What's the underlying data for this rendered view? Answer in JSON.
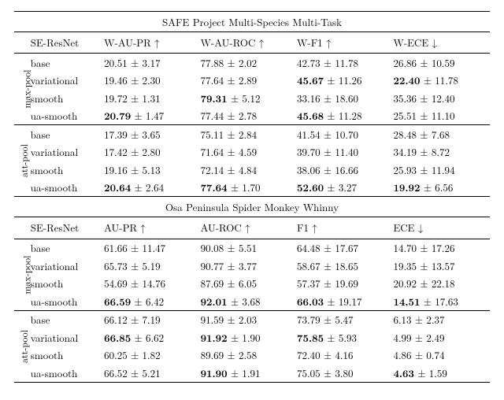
{
  "datasets": [
    {
      "title": "SAFE Project Multi-Species Multi-Task",
      "col_model": "SE-ResNet",
      "metrics": [
        "W-AU-PR ↑",
        "W-AU-ROC ↑",
        "W-F1 ↑",
        "W-ECE ↓"
      ],
      "groups": [
        {
          "name": "max-pool",
          "rows": [
            {
              "label": "base",
              "cells": [
                {
                  "v": "20.51",
                  "e": "3.17",
                  "b": false
                },
                {
                  "v": "77.88",
                  "e": "2.02",
                  "b": false
                },
                {
                  "v": "42.73",
                  "e": "11.78",
                  "b": false
                },
                {
                  "v": "26.86",
                  "e": "10.59",
                  "b": false
                }
              ]
            },
            {
              "label": "variational",
              "cells": [
                {
                  "v": "19.46",
                  "e": "2.30",
                  "b": false
                },
                {
                  "v": "77.64",
                  "e": "2.89",
                  "b": false
                },
                {
                  "v": "45.67",
                  "e": "11.26",
                  "b": true
                },
                {
                  "v": "22.40",
                  "e": "11.78",
                  "b": true
                }
              ]
            },
            {
              "label": "smooth",
              "cells": [
                {
                  "v": "19.72",
                  "e": "1.31",
                  "b": false
                },
                {
                  "v": "79.31",
                  "e": "5.12",
                  "b": true
                },
                {
                  "v": "33.16",
                  "e": "18.60",
                  "b": false
                },
                {
                  "v": "35.36",
                  "e": "12.40",
                  "b": false
                }
              ]
            },
            {
              "label": "ua-smooth",
              "cells": [
                {
                  "v": "20.79",
                  "e": "1.47",
                  "b": true
                },
                {
                  "v": "77.44",
                  "e": "2.78",
                  "b": false
                },
                {
                  "v": "45.68",
                  "e": "11.28",
                  "b": true
                },
                {
                  "v": "25.51",
                  "e": "11.10",
                  "b": false
                }
              ]
            }
          ]
        },
        {
          "name": "att-pool",
          "rows": [
            {
              "label": "base",
              "cells": [
                {
                  "v": "17.39",
                  "e": "3.65",
                  "b": false
                },
                {
                  "v": "75.11",
                  "e": "2.84",
                  "b": false
                },
                {
                  "v": "41.54",
                  "e": "10.70",
                  "b": false
                },
                {
                  "v": "28.48",
                  "e": "7.68",
                  "b": false
                }
              ]
            },
            {
              "label": "variational",
              "cells": [
                {
                  "v": "17.42",
                  "e": "2.80",
                  "b": false
                },
                {
                  "v": "71.64",
                  "e": "4.59",
                  "b": false
                },
                {
                  "v": "39.70",
                  "e": "11.40",
                  "b": false
                },
                {
                  "v": "34.19",
                  "e": "8.72",
                  "b": false
                }
              ]
            },
            {
              "label": "smooth",
              "cells": [
                {
                  "v": "19.16",
                  "e": "5.13",
                  "b": false
                },
                {
                  "v": "72.14",
                  "e": "4.84",
                  "b": false
                },
                {
                  "v": "38.06",
                  "e": "16.66",
                  "b": false
                },
                {
                  "v": "25.93",
                  "e": "11.94",
                  "b": false
                }
              ]
            },
            {
              "label": "ua-smooth",
              "cells": [
                {
                  "v": "20.64",
                  "e": "2.64",
                  "b": true
                },
                {
                  "v": "77.64",
                  "e": "1.70",
                  "b": true
                },
                {
                  "v": "52.60",
                  "e": "3.27",
                  "b": true
                },
                {
                  "v": "19.92",
                  "e": "6.56",
                  "b": true
                }
              ]
            }
          ]
        }
      ]
    },
    {
      "title": "Osa Peninsula Spider Monkey Whinny",
      "col_model": "SE-ResNet",
      "metrics": [
        "AU-PR ↑",
        "AU-ROC ↑",
        "F1 ↑",
        "ECE ↓"
      ],
      "groups": [
        {
          "name": "max-pool",
          "rows": [
            {
              "label": "base",
              "cells": [
                {
                  "v": "61.66",
                  "e": "11.47",
                  "b": false
                },
                {
                  "v": "90.08",
                  "e": "5.51",
                  "b": false
                },
                {
                  "v": "64.48",
                  "e": "17.67",
                  "b": false
                },
                {
                  "v": "14.70",
                  "e": "17.26",
                  "b": false
                }
              ]
            },
            {
              "label": "variational",
              "cells": [
                {
                  "v": "65.73",
                  "e": "5.19",
                  "b": false
                },
                {
                  "v": "90.77",
                  "e": "3.77",
                  "b": false
                },
                {
                  "v": "58.67",
                  "e": "18.65",
                  "b": false
                },
                {
                  "v": "19.35",
                  "e": "13.57",
                  "b": false
                }
              ]
            },
            {
              "label": "smooth",
              "cells": [
                {
                  "v": "54.69",
                  "e": "14.76",
                  "b": false
                },
                {
                  "v": "87.69",
                  "e": "6.05",
                  "b": false
                },
                {
                  "v": "57.37",
                  "e": "19.69",
                  "b": false
                },
                {
                  "v": "20.92",
                  "e": "22.18",
                  "b": false
                }
              ]
            },
            {
              "label": "ua-smooth",
              "cells": [
                {
                  "v": "66.59",
                  "e": "6.42",
                  "b": true
                },
                {
                  "v": "92.01",
                  "e": "3.68",
                  "b": true
                },
                {
                  "v": "66.03",
                  "e": "19.17",
                  "b": true
                },
                {
                  "v": "14.51",
                  "e": "17.63",
                  "b": true
                }
              ]
            }
          ]
        },
        {
          "name": "att-pool",
          "rows": [
            {
              "label": "base",
              "cells": [
                {
                  "v": "66.12",
                  "e": "7.19",
                  "b": false
                },
                {
                  "v": "91.59",
                  "e": "2.03",
                  "b": false
                },
                {
                  "v": "73.79",
                  "e": "5.47",
                  "b": false
                },
                {
                  "v": "6.13",
                  "e": "2.37",
                  "b": false
                }
              ]
            },
            {
              "label": "variational",
              "cells": [
                {
                  "v": "66.85",
                  "e": "6.62",
                  "b": true
                },
                {
                  "v": "91.92",
                  "e": "1.90",
                  "b": true
                },
                {
                  "v": "75.85",
                  "e": "5.93",
                  "b": true
                },
                {
                  "v": "4.99",
                  "e": "2.49",
                  "b": false
                }
              ]
            },
            {
              "label": "smooth",
              "cells": [
                {
                  "v": "60.25",
                  "e": "1.82",
                  "b": false
                },
                {
                  "v": "89.69",
                  "e": "2.58",
                  "b": false
                },
                {
                  "v": "72.40",
                  "e": "4.16",
                  "b": false
                },
                {
                  "v": "4.86",
                  "e": "0.74",
                  "b": false
                }
              ]
            },
            {
              "label": "ua-smooth",
              "cells": [
                {
                  "v": "66.52",
                  "e": "5.21",
                  "b": false
                },
                {
                  "v": "91.90",
                  "e": "1.91",
                  "b": true
                },
                {
                  "v": "75.05",
                  "e": "3.80",
                  "b": false
                },
                {
                  "v": "4.63",
                  "e": "1.59",
                  "b": true
                }
              ]
            }
          ]
        }
      ]
    }
  ]
}
